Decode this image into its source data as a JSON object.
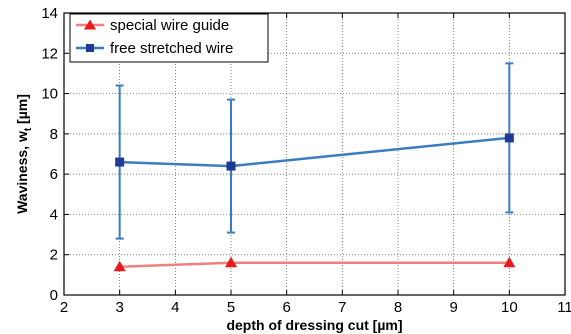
{
  "chart_data": {
    "type": "line",
    "xlabel": "depth of dressing cut [µm]",
    "ylabel": "Waviness, w",
    "ylabel_sub": "t",
    "ylabel_unit": " [µm]",
    "xlim": [
      2,
      11
    ],
    "ylim": [
      0,
      14
    ],
    "xticks": [
      2,
      3,
      4,
      5,
      6,
      7,
      8,
      9,
      10,
      11
    ],
    "yticks": [
      0,
      2,
      4,
      6,
      8,
      10,
      12,
      14
    ],
    "grid": true,
    "legend_position": "top-left",
    "series": [
      {
        "name": "special wire guide",
        "marker": "triangle",
        "color": "#e8191c",
        "line_color": "#f08080",
        "x": [
          3,
          5,
          10
        ],
        "y": [
          1.4,
          1.6,
          1.6
        ]
      },
      {
        "name": "free stretched wire",
        "marker": "square",
        "color": "#1f3a93",
        "line_color": "#3a7cc2",
        "x": [
          3,
          5,
          10
        ],
        "y": [
          6.6,
          6.4,
          7.8
        ],
        "err_low": [
          2.8,
          3.1,
          4.1
        ],
        "err_high": [
          10.4,
          9.7,
          11.5
        ]
      }
    ]
  }
}
